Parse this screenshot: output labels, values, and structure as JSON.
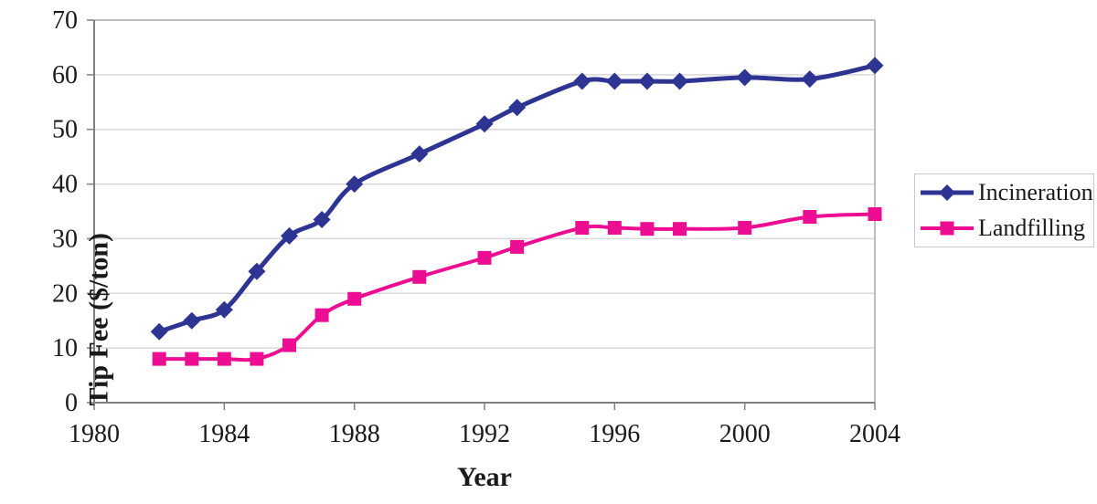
{
  "chart_data": {
    "type": "line",
    "title": "",
    "xlabel": "Year",
    "ylabel": "Tip Fee ($/ton)",
    "x": [
      1982,
      1983,
      1984,
      1985,
      1986,
      1987,
      1988,
      1990,
      1992,
      1993,
      1995,
      1996,
      1997,
      1998,
      2000,
      2002,
      2004
    ],
    "series": [
      {
        "name": "Incineration",
        "color": "#2d3491",
        "marker": "diamond",
        "values": [
          13,
          15,
          17,
          24,
          30.5,
          33.5,
          40,
          45.5,
          51,
          54,
          58.8,
          58.8,
          58.8,
          58.8,
          59.5,
          59.2,
          61.7
        ]
      },
      {
        "name": "Landfilling",
        "color": "#ec0d92",
        "marker": "square",
        "values": [
          8,
          8,
          8,
          8,
          10.5,
          16,
          19,
          23,
          26.5,
          28.5,
          32,
          32,
          31.8,
          31.8,
          32,
          34,
          34.5
        ]
      }
    ],
    "xlim": [
      1980,
      2004
    ],
    "ylim": [
      0,
      70
    ],
    "xticks": [
      1980,
      1984,
      1988,
      1992,
      1996,
      2000,
      2004
    ],
    "yticks": [
      0,
      10,
      20,
      30,
      40,
      50,
      60,
      70
    ],
    "grid": "horizontal",
    "smoothed_lines": true,
    "legend_position": "right"
  },
  "colors": {
    "gridline": "#d8d8d8",
    "plot_border": "#a9a9a9",
    "axis": "#7f7f7f",
    "tick": "#7f7f7f",
    "text": "#1a1a1a",
    "legend_border": "#c8c8c8",
    "background": "#ffffff"
  }
}
